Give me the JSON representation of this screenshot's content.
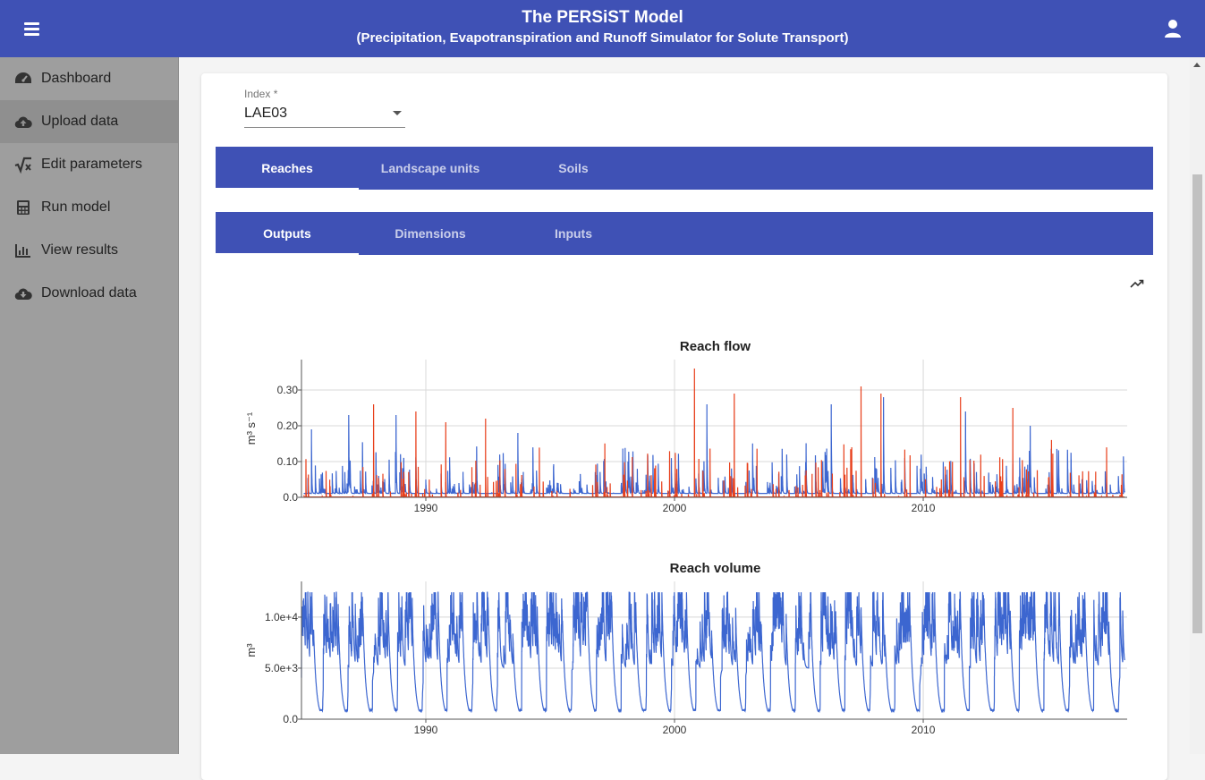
{
  "header": {
    "title": "The PERSiST Model",
    "subtitle": "(Precipitation, Evapotranspiration and Runoff Simulator for Solute Transport)"
  },
  "sidebar": {
    "items": [
      {
        "label": "Dashboard",
        "icon": "speedometer-icon",
        "active": false
      },
      {
        "label": "Upload data",
        "icon": "cloud-upload-icon",
        "active": true
      },
      {
        "label": "Edit parameters",
        "icon": "square-root-icon",
        "active": false
      },
      {
        "label": "Run model",
        "icon": "calculator-icon",
        "active": false
      },
      {
        "label": "View results",
        "icon": "bar-chart-icon",
        "active": false
      },
      {
        "label": "Download data",
        "icon": "cloud-download-icon",
        "active": false
      }
    ]
  },
  "index_select": {
    "label": "Index *",
    "value": "LAE03"
  },
  "tabs_primary": [
    {
      "label": "Reaches",
      "active": true
    },
    {
      "label": "Landscape units",
      "active": false
    },
    {
      "label": "Soils",
      "active": false
    }
  ],
  "tabs_secondary": [
    {
      "label": "Outputs",
      "active": true
    },
    {
      "label": "Dimensions",
      "active": false
    },
    {
      "label": "Inputs",
      "active": false
    }
  ],
  "colors": {
    "primary": "#3f51b5",
    "series_blue": "#3c66d0",
    "series_red": "#e8401c"
  },
  "chart_data": [
    {
      "type": "line",
      "title": "Reach flow",
      "ylabel": "m³ s⁻¹",
      "xlim": [
        1985.0,
        2018.2
      ],
      "ylim": [
        0,
        0.385
      ],
      "xticks": [
        1990,
        2000,
        2010
      ],
      "xtick_labels": [
        "1990",
        "2000",
        "2010"
      ],
      "yticks": [
        0,
        0.1,
        0.2,
        0.3
      ],
      "ytick_labels": [
        "0.0",
        "0.10",
        "0.20",
        "0.30"
      ],
      "grid": true,
      "legend": "none",
      "series": [
        {
          "color": "#3c66d0",
          "x_start": 1985.1,
          "x_end": 2018.1,
          "description": "daily simulated reach flow",
          "peaks": [
            [
              1985.4,
              0.19
            ],
            [
              1986.9,
              0.23
            ],
            [
              1988.8,
              0.23
            ],
            [
              1993.7,
              0.18
            ],
            [
              2001.3,
              0.26
            ],
            [
              2006.3,
              0.26
            ],
            [
              2008.4,
              0.28
            ],
            [
              2011.7,
              0.24
            ],
            [
              2014.3,
              0.2
            ]
          ]
        },
        {
          "color": "#e8401c",
          "x_start": 1985.1,
          "x_end": 2018.1,
          "description": "daily observed reach flow",
          "peaks": [
            [
              1987.9,
              0.26
            ],
            [
              1989.6,
              0.24
            ],
            [
              1990.8,
              0.21
            ],
            [
              1992.4,
              0.22
            ],
            [
              2000.8,
              0.36
            ],
            [
              2002.4,
              0.29
            ],
            [
              2007.5,
              0.31
            ],
            [
              2008.3,
              0.29
            ],
            [
              2011.5,
              0.28
            ],
            [
              2013.6,
              0.25
            ]
          ]
        }
      ]
    },
    {
      "type": "line",
      "title": "Reach volume",
      "ylabel": "m³",
      "xlim": [
        1985.0,
        2018.2
      ],
      "ylim": [
        0,
        13500
      ],
      "xticks": [
        1990,
        2000,
        2010
      ],
      "xtick_labels": [
        "1990",
        "2000",
        "2010"
      ],
      "yticks": [
        0,
        5000,
        10000
      ],
      "ytick_labels": [
        "0.0",
        "5.0e+3",
        "1.0e+4"
      ],
      "grid": true,
      "legend": "none",
      "series": [
        {
          "color": "#3c66d0",
          "x_start": 1985.0,
          "x_end": 2018.1,
          "description": "daily simulated reach volume",
          "range": [
            800,
            13000
          ]
        }
      ]
    }
  ]
}
